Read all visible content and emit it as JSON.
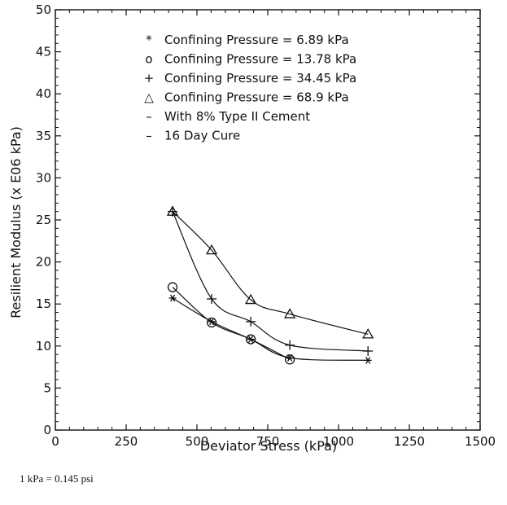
{
  "chart_data": {
    "type": "line",
    "xlabel": "Deviator Stress (kPa)",
    "ylabel": "Resilient Modulus (x E06 kPa)",
    "xlim": [
      0,
      1500
    ],
    "ylim": [
      0,
      50
    ],
    "x_ticks": [
      0,
      250,
      500,
      750,
      1000,
      1250,
      1500
    ],
    "y_ticks": [
      0,
      5,
      10,
      15,
      20,
      25,
      30,
      35,
      40,
      45,
      50
    ],
    "grid": false,
    "legend_position": "top-right",
    "series": [
      {
        "name": "Confining Pressure = 6.89 kPa",
        "legend_symbol": "*",
        "marker": "asterisk",
        "x": [
          414,
          552,
          690,
          828,
          1104
        ],
        "y": [
          15.7,
          12.9,
          10.8,
          8.6,
          8.3
        ]
      },
      {
        "name": "Confining Pressure = 13.78 kPa",
        "legend_symbol": "o",
        "marker": "circle",
        "x": [
          414,
          552,
          690,
          828
        ],
        "y": [
          17.0,
          12.8,
          10.8,
          8.4
        ]
      },
      {
        "name": "Confining Pressure = 34.45 kPa",
        "legend_symbol": "+",
        "marker": "plus",
        "x": [
          414,
          552,
          690,
          828,
          1104
        ],
        "y": [
          26.0,
          15.6,
          12.9,
          10.1,
          9.4
        ]
      },
      {
        "name": "Confining Pressure = 68.9 kPa",
        "legend_symbol": "△",
        "marker": "triangle",
        "x": [
          414,
          552,
          690,
          828,
          1104
        ],
        "y": [
          26.0,
          21.4,
          15.5,
          13.8,
          11.4
        ]
      }
    ],
    "annotations": [
      {
        "symbol": "–",
        "text": "With 8% Type II Cement"
      },
      {
        "symbol": "–",
        "text": "16 Day Cure"
      }
    ]
  },
  "footnote": "1 kPa = 0.145 psi",
  "colors": {
    "ink": "#111111",
    "background": "#ffffff"
  }
}
